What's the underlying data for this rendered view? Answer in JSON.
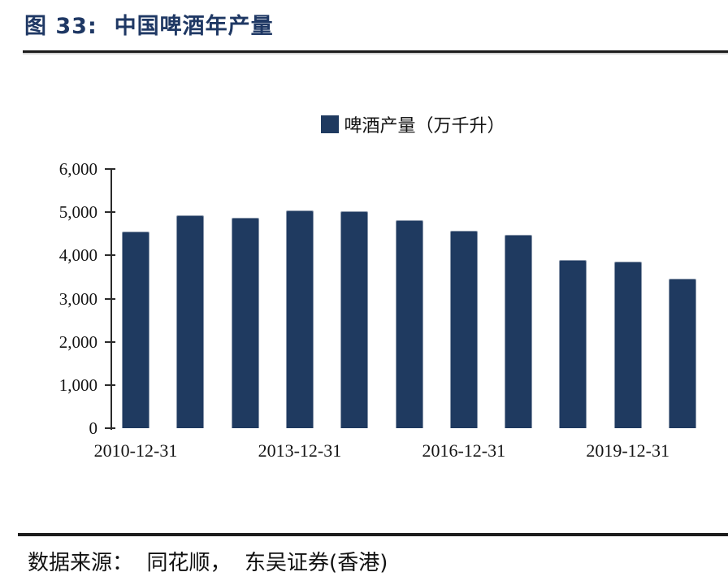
{
  "header": {
    "title": "图 33:  中国啤酒年产量",
    "title_color": "#1F3864"
  },
  "legend": {
    "label": "啤酒产量（万千升）",
    "swatch_color": "#1F3A60"
  },
  "footer": {
    "source_text": "数据来源：  同花顺，  东吴证券(香港)"
  },
  "colors": {
    "bar_fill": "#1F3A60",
    "bar_edge": "#8795A9",
    "axis": "#2B2B2B",
    "rule": "#1B1B1B",
    "title": "#1F3864",
    "text": "#141414",
    "background": "#FFFFFF"
  },
  "chart_data": {
    "type": "bar",
    "title": "中国啤酒年产量",
    "legend_entries": [
      "啤酒产量（万千升）"
    ],
    "legend_position": "top-center",
    "series_name": "啤酒产量（万千升）",
    "categories": [
      "2010-12-31",
      "2011-12-31",
      "2012-12-31",
      "2013-12-31",
      "2014-12-31",
      "2015-12-31",
      "2016-12-31",
      "2017-12-31",
      "2018-12-31",
      "2019-12-31",
      "2020-12-31"
    ],
    "values": [
      4550,
      4920,
      4870,
      5050,
      5030,
      4810,
      4570,
      4480,
      3890,
      3860,
      3460
    ],
    "xlabel": "",
    "ylabel": "",
    "ylim": [
      0,
      6000
    ],
    "y_ticks": [
      0,
      1000,
      2000,
      3000,
      4000,
      5000,
      6000
    ],
    "y_tick_labels": [
      "0",
      "1,000",
      "2,000",
      "3,000",
      "4,000",
      "5,000",
      "6,000"
    ],
    "x_tick_labels_shown": [
      "2010-12-31",
      "2013-12-31",
      "2016-12-31",
      "2019-12-31"
    ],
    "grid": false
  }
}
